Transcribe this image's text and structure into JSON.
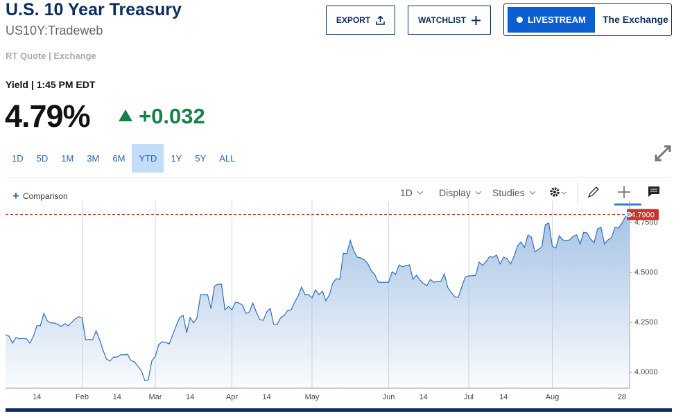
{
  "header": {
    "title": "U.S. 10 Year Treasury",
    "symbol": "US10Y:Tradeweb",
    "source": "RT Quote | Exchange"
  },
  "actions": {
    "export": "EXPORT",
    "watchlist": "WATCHLIST",
    "livestream": "LIVESTREAM",
    "show": "The Exchange"
  },
  "quote": {
    "label": "Yield | 1:45 PM EDT",
    "last": "4.79%",
    "change": "+0.032"
  },
  "ranges": [
    "1D",
    "5D",
    "1M",
    "3M",
    "6M",
    "YTD",
    "1Y",
    "5Y",
    "ALL"
  ],
  "active_range": "YTD",
  "toolbar": {
    "comparison": "Comparison",
    "interval": "1D",
    "display": "Display",
    "studies": "Studies"
  },
  "chart_data": {
    "type": "area",
    "color": "#2f6eb5",
    "area_color": "#9cbde2",
    "grid": "x",
    "categories": [
      null,
      null,
      null,
      null,
      null,
      null,
      null,
      null,
      null,
      "14",
      null,
      null,
      null,
      null,
      null,
      null,
      null,
      null,
      null,
      null,
      null,
      null,
      "Feb",
      null,
      null,
      null,
      null,
      null,
      null,
      null,
      null,
      null,
      "14",
      null,
      null,
      null,
      null,
      null,
      null,
      null,
      null,
      null,
      null,
      "Mar",
      null,
      null,
      null,
      null,
      null,
      null,
      null,
      null,
      null,
      "14",
      null,
      null,
      null,
      null,
      null,
      null,
      null,
      null,
      null,
      null,
      null,
      "Apr",
      null,
      null,
      null,
      null,
      null,
      null,
      null,
      null,
      null,
      "14",
      null,
      null,
      null,
      null,
      null,
      null,
      null,
      null,
      null,
      null,
      null,
      null,
      "May",
      null,
      null,
      null,
      null,
      null,
      null,
      null,
      null,
      null,
      null,
      null,
      null,
      null,
      null,
      null,
      null,
      null,
      null,
      null,
      null,
      null,
      "Jun",
      null,
      null,
      null,
      null,
      null,
      null,
      null,
      null,
      null,
      "14",
      null,
      null,
      null,
      null,
      null,
      null,
      null,
      null,
      null,
      null,
      null,
      null,
      "Jul",
      null,
      null,
      null,
      null,
      null,
      null,
      null,
      null,
      null,
      "14",
      null,
      null,
      null,
      null,
      null,
      null,
      null,
      null,
      null,
      null,
      null,
      null,
      null,
      "Aug",
      null,
      null,
      null,
      null,
      null,
      null,
      null,
      null,
      null,
      null,
      null,
      null,
      null,
      null,
      null,
      null,
      null,
      null,
      null,
      "28",
      null,
      null
    ],
    "values": [
      4.188,
      4.181,
      4.146,
      4.174,
      4.167,
      4.17,
      4.167,
      4.146,
      4.181,
      4.233,
      4.233,
      4.295,
      4.257,
      4.247,
      4.247,
      4.24,
      4.229,
      4.243,
      4.233,
      4.25,
      4.267,
      4.278,
      4.274,
      4.163,
      4.163,
      4.163,
      4.208,
      4.163,
      4.111,
      4.066,
      4.056,
      4.076,
      4.076,
      4.087,
      4.087,
      4.09,
      4.059,
      4.052,
      4.031,
      4.007,
      3.958,
      3.962,
      4.056,
      4.08,
      4.139,
      4.153,
      4.149,
      4.142,
      4.188,
      4.233,
      4.274,
      4.285,
      4.198,
      4.274,
      4.247,
      4.274,
      4.389,
      4.389,
      4.389,
      4.319,
      4.431,
      4.441,
      4.441,
      4.313,
      4.33,
      4.313,
      4.351,
      4.347,
      4.337,
      4.295,
      4.302,
      4.347,
      4.302,
      4.264,
      4.26,
      4.302,
      4.319,
      4.24,
      4.24,
      4.274,
      4.285,
      4.309,
      4.313,
      4.351,
      4.382,
      4.427,
      4.389,
      4.389,
      4.372,
      4.413,
      4.389,
      4.406,
      4.358,
      4.389,
      4.448,
      4.469,
      4.465,
      4.597,
      4.594,
      4.66,
      4.608,
      4.576,
      4.573,
      4.563,
      4.545,
      4.51,
      4.49,
      4.451,
      4.451,
      4.451,
      4.451,
      4.503,
      4.49,
      4.538,
      4.528,
      4.535,
      4.538,
      4.465,
      4.486,
      4.462,
      4.444,
      4.434,
      4.465,
      4.451,
      4.455,
      4.455,
      4.493,
      4.424,
      4.399,
      4.378,
      4.375,
      4.427,
      4.476,
      4.483,
      4.483,
      4.486,
      4.552,
      4.535,
      4.556,
      4.58,
      4.576,
      4.587,
      4.542,
      4.576,
      4.569,
      4.542,
      4.58,
      4.632,
      4.653,
      4.625,
      4.688,
      4.677,
      4.604,
      4.615,
      4.628,
      4.74,
      4.747,
      4.632,
      4.622,
      4.684,
      4.663,
      4.66,
      4.663,
      4.681,
      4.688,
      4.642,
      4.701,
      4.698,
      4.667,
      4.649,
      4.719,
      4.726,
      4.642,
      4.663,
      4.674,
      4.726,
      4.722,
      4.747,
      4.78,
      4.79
    ],
    "ylim": [
      3.92,
      4.83
    ],
    "yticks": [
      {
        "value": 4,
        "label": "4.0000"
      },
      {
        "value": 4.25,
        "label": "4.2500"
      },
      {
        "value": 4.5,
        "label": "4.5000"
      },
      {
        "value": 4.75,
        "label": "4.7500"
      }
    ],
    "last_label": {
      "value": 4.79,
      "label": "4.7900"
    },
    "last_color": "#c9332a"
  }
}
